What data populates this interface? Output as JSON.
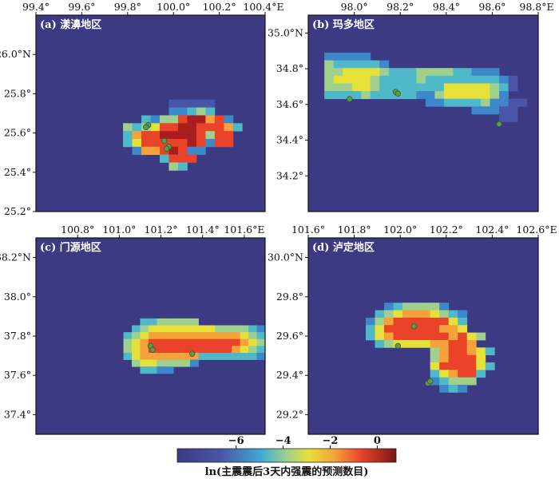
{
  "colorbar": {
    "label": "ln(主震震后3天内强震的预测数目)",
    "range": [
      -8.5,
      0.8
    ],
    "ticks": [
      -6,
      -4,
      -2,
      0
    ],
    "tick_labels": [
      "−6",
      "−4",
      "−2",
      "0"
    ]
  },
  "colors": {
    "background": "#3b3a83",
    "event_marker": "#5e9a4a",
    "event_marker_edge": "#2f5f2a"
  },
  "chart_data": [
    {
      "id": "a",
      "type": "heatmap",
      "label": "(a) 漾濞地区",
      "xlim": [
        99.4,
        100.4
      ],
      "ylim": [
        25.2,
        26.2
      ],
      "x_ticks": [
        99.4,
        99.6,
        99.8,
        100.0,
        100.2,
        100.4
      ],
      "x_tick_labels": [
        "99.4°",
        "99.6°",
        "99.8°",
        "100.0°",
        "100.2°",
        "100.4°E"
      ],
      "y_ticks": [
        25.2,
        25.4,
        25.6,
        25.8,
        26.0
      ],
      "y_tick_labels": [
        "25.2°",
        "25.4°",
        "25.6°",
        "25.8°",
        "26.0°N"
      ],
      "grid": {
        "lon0": 99.74,
        "lat_top": 25.77,
        "dx": 0.04,
        "dy": 0.04
      },
      "cells": [
        "......00000.......",
        "......11232.......",
        "...2133677561.....",
        ".3234667766652....",
        ".256677776366.....",
        ".246666676166.....",
        "..15567611........",
        ".....2666.........",
        "......32.........."
      ],
      "events": [
        [
          99.89,
          25.64
        ],
        [
          99.88,
          25.63
        ],
        [
          99.96,
          25.56
        ],
        [
          99.98,
          25.53
        ],
        [
          99.97,
          25.52
        ]
      ]
    },
    {
      "id": "b",
      "type": "heatmap",
      "label": "(b) 玛多地区",
      "xlim": [
        97.8,
        98.8
      ],
      "ylim": [
        34.0,
        35.1
      ],
      "x_ticks": [
        98.0,
        98.2,
        98.4,
        98.6,
        98.8
      ],
      "x_tick_labels": [
        "98.0°",
        "98.2°",
        "98.4°",
        "98.6°",
        "98.8°E"
      ],
      "y_ticks": [
        34.2,
        34.4,
        34.6,
        34.8,
        35.0
      ],
      "y_tick_labels": [
        "34.2°",
        "34.4°",
        "34.6°",
        "34.8°",
        "35.0°N"
      ],
      "grid": {
        "lon0": 97.87,
        "lat_top": 34.89,
        "dx": 0.04,
        "dy": 0.043
      },
      "cells": [
        "11111.................",
        "3222221...............",
        "3344443222333322111...",
        "344443222232222222210.",
        "333443222222244444320.",
        "22223222221134444431..",
        "...........11222231100",
        "................11100.",
        "...................00."
      ],
      "events": [
        [
          97.98,
          34.63
        ],
        [
          98.18,
          34.67
        ],
        [
          98.19,
          34.66
        ],
        [
          98.63,
          34.49
        ]
      ]
    },
    {
      "id": "c",
      "type": "heatmap",
      "label": "(c) 门源地区",
      "xlim": [
        100.6,
        101.7
      ],
      "ylim": [
        37.3,
        38.3
      ],
      "x_ticks": [
        100.8,
        101.0,
        101.2,
        101.4,
        101.6
      ],
      "x_tick_labels": [
        "100.8°",
        "101.0°",
        "101.2°",
        "101.4°",
        "101.6°E"
      ],
      "y_ticks": [
        37.4,
        37.6,
        37.8,
        38.0,
        38.2
      ],
      "y_tick_labels": [
        "37.4°",
        "37.6°",
        "37.8°",
        "38.0°",
        "38.2°N"
      ],
      "grid": {
        "lon0": 100.98,
        "lat_top": 37.89,
        "dx": 0.04,
        "dy": 0.035
      },
      "cells": [
        "...2233333........",
        "..23444444443333210",
        ".2345555555555543210",
        ".3456666666666654321",
        ".3456666666666543210",
        ".2455555552222222110",
        "..34433331.........",
        "...2211............"
      ],
      "events": [
        [
          101.15,
          37.75
        ],
        [
          101.16,
          37.73
        ],
        [
          101.35,
          37.71
        ]
      ]
    },
    {
      "id": "d",
      "type": "heatmap",
      "label": "(d) 泸定地区",
      "xlim": [
        101.6,
        102.6
      ],
      "ylim": [
        29.1,
        30.1
      ],
      "x_ticks": [
        101.6,
        101.8,
        102.0,
        102.2,
        102.4,
        102.6
      ],
      "x_tick_labels": [
        "101.6°",
        "101.8°",
        "102.0°",
        "102.2°",
        "102.4°",
        "102.6°E"
      ],
      "y_ticks": [
        29.2,
        29.4,
        29.6,
        29.8,
        30.0
      ],
      "y_tick_labels": [
        "29.2°",
        "29.4°",
        "29.6°",
        "29.8°",
        "30.0°N"
      ],
      "grid": {
        "lon0": 101.85,
        "lat_top": 29.77,
        "dx": 0.04,
        "dy": 0.038
      },
      "cells": [
        "..1233331.....",
        ".2345554321...",
        "13566666642...",
        "24666666554...",
        "2456666665643.",
        ".23444455665..",
        ".......3566542",
        ".......356664.",
        ".......4666642",
        ".......245662.",
        ".......12333..",
        "........121..."
      ],
      "events": [
        [
          102.06,
          29.65
        ],
        [
          101.99,
          29.55
        ],
        [
          102.12,
          29.36
        ],
        [
          102.13,
          29.37
        ]
      ]
    }
  ]
}
